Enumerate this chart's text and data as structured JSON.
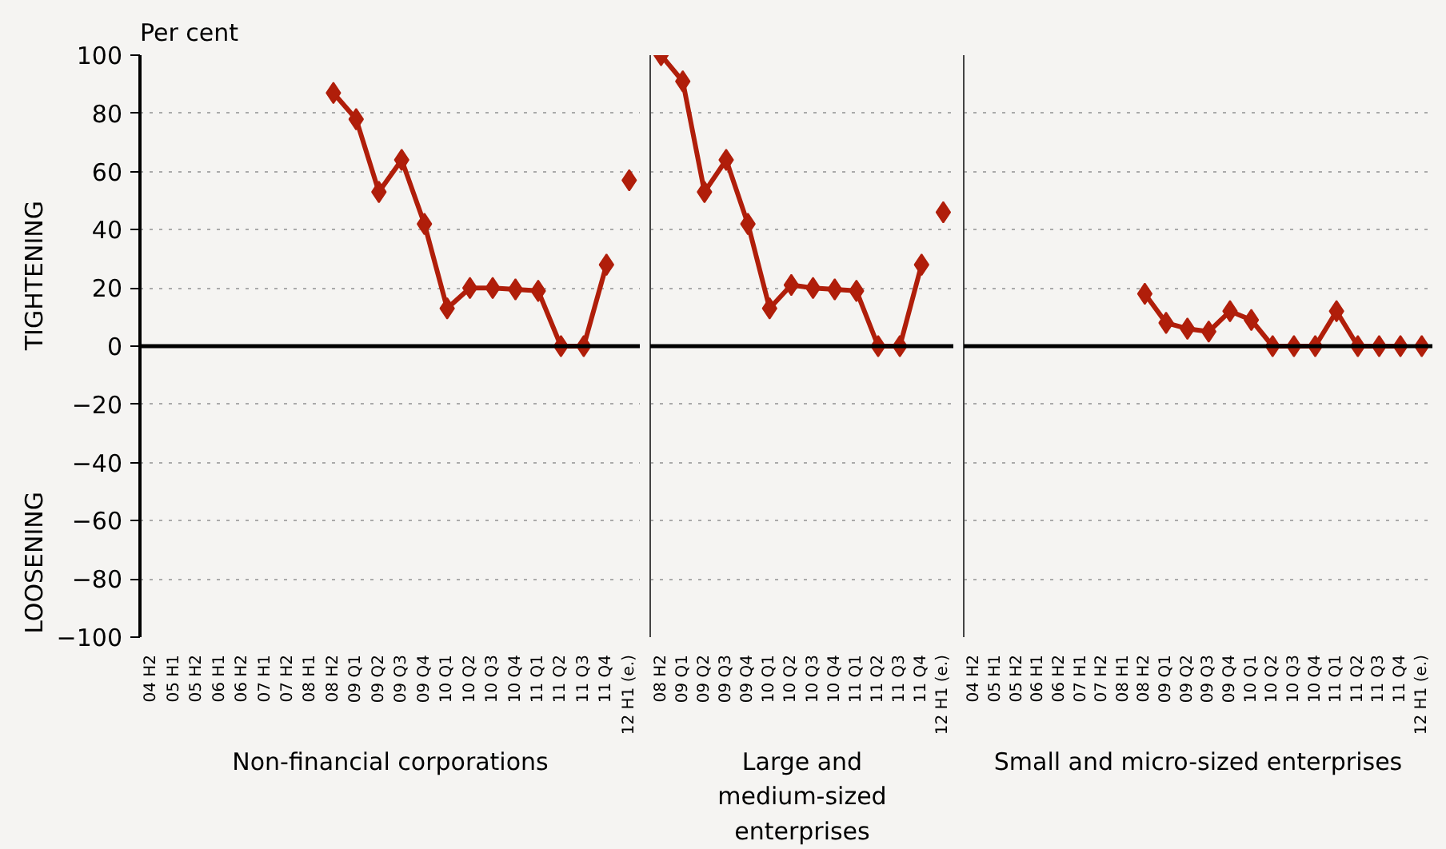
{
  "chart_data": [
    {
      "type": "line",
      "ylabel": "Per cent",
      "xlabel": "Non-financial corporations",
      "annotations": [
        "TIGHTENING",
        "LOOSENING"
      ],
      "categories": [
        "04 H2",
        "05 H1",
        "05 H2",
        "06 H1",
        "06 H2",
        "07 H1",
        "07 H2",
        "08 H1",
        "08 H2",
        "09 Q1",
        "09 Q2",
        "09 Q3",
        "09 Q4",
        "10 Q1",
        "10 Q2",
        "10 Q3",
        "10 Q4",
        "11 Q1",
        "11 Q2",
        "11 Q3",
        "11 Q4",
        "12 H1 (e.)"
      ],
      "series": [
        {
          "color": "#b01e0a",
          "values": [
            null,
            null,
            null,
            null,
            null,
            null,
            null,
            null,
            87,
            78,
            53,
            64,
            42,
            13,
            20,
            20,
            19.5,
            19,
            0,
            0,
            28,
            null
          ]
        },
        {
          "type": "scatter",
          "color": "#b01e0a",
          "x": [
            "12 H1 (e.)"
          ],
          "values": [
            57
          ]
        }
      ],
      "ylim": [
        -100,
        100
      ],
      "yticks": [
        -100,
        -80,
        -60,
        -40,
        -20,
        0,
        20,
        40,
        60,
        80,
        100
      ],
      "ref_lines": [
        {
          "axis": "y",
          "value": 0,
          "color": "#000000"
        }
      ],
      "grid": "y",
      "marker": "diamond",
      "line_style": "solid"
    },
    {
      "type": "line",
      "xlabel": "Large and medium-sized enterprises",
      "categories": [
        "08 H2",
        "09 Q1",
        "09 Q2",
        "09 Q3",
        "09 Q4",
        "10 Q1",
        "10 Q2",
        "10 Q3",
        "10 Q4",
        "11 Q1",
        "11 Q2",
        "11 Q3",
        "11 Q4",
        "12 H1 (e.)"
      ],
      "series": [
        {
          "color": "#b01e0a",
          "values": [
            100,
            91,
            53,
            64,
            42,
            13,
            21,
            20,
            19.5,
            19,
            0,
            0,
            28,
            null
          ]
        },
        {
          "type": "scatter",
          "color": "#b01e0a",
          "x": [
            "12 H1 (e.)"
          ],
          "values": [
            46
          ]
        }
      ],
      "ylim": [
        -100,
        100
      ],
      "yticks": [
        -100,
        -80,
        -60,
        -40,
        -20,
        0,
        20,
        40,
        60,
        80,
        100
      ],
      "tick_labels": "x",
      "ref_lines": [
        {
          "axis": "y",
          "value": 0,
          "color": "#000000"
        }
      ],
      "grid": "y",
      "marker": "diamond",
      "line_style": "solid"
    },
    {
      "type": "line",
      "xlabel": "Small and micro-sized enterprises",
      "categories": [
        "04 H2",
        "05 H1",
        "05 H2",
        "06 H1",
        "06 H2",
        "07 H1",
        "07 H2",
        "08 H1",
        "08 H2",
        "09 Q1",
        "09 Q2",
        "09 Q3",
        "09 Q4",
        "10 Q1",
        "10 Q2",
        "10 Q3",
        "10 Q4",
        "11 Q1",
        "11 Q2",
        "11 Q3",
        "11 Q4",
        "12 H1 (e.)"
      ],
      "series": [
        {
          "color": "#b01e0a",
          "values": [
            null,
            null,
            null,
            null,
            null,
            null,
            null,
            null,
            18,
            8,
            6,
            5,
            12,
            9,
            0,
            0,
            0,
            12,
            0,
            0,
            0,
            null
          ]
        },
        {
          "type": "scatter",
          "color": "#b01e0a",
          "x": [
            "12 H1 (e.)"
          ],
          "values": [
            0
          ]
        }
      ],
      "ylim": [
        -100,
        100
      ],
      "yticks": [
        -100,
        -80,
        -60,
        -40,
        -20,
        0,
        20,
        40,
        60,
        80,
        100
      ],
      "tick_labels": "x",
      "ref_lines": [
        {
          "axis": "y",
          "value": 0,
          "color": "#000000"
        }
      ],
      "grid": "y",
      "marker": "diamond",
      "line_style": "solid"
    }
  ]
}
